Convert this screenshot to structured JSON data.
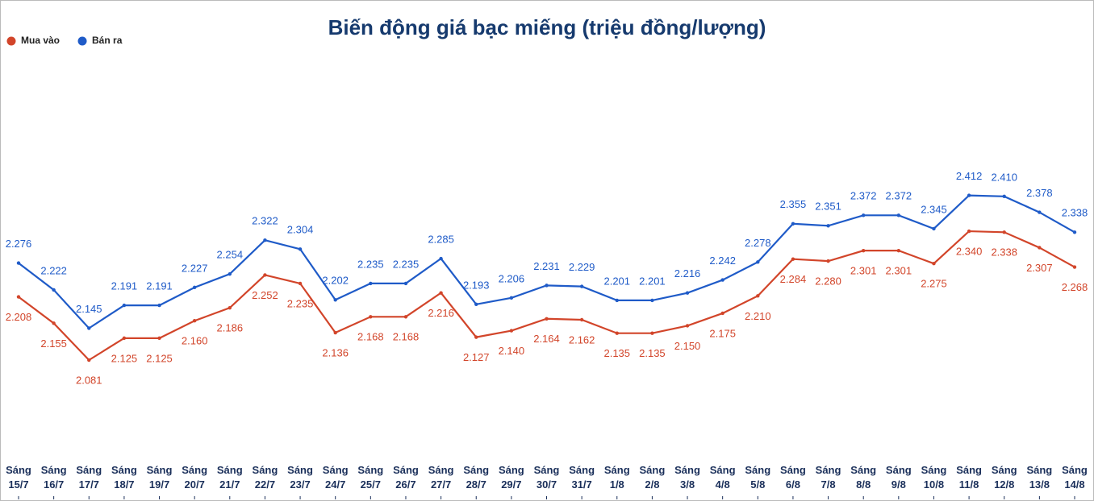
{
  "chart_data": {
    "type": "line",
    "title": "Biến động giá bạc miếng (triệu đồng/lượng)",
    "categories": [
      [
        "Sáng",
        "15/7"
      ],
      [
        "Sáng",
        "16/7"
      ],
      [
        "Sáng",
        "17/7"
      ],
      [
        "Sáng",
        "18/7"
      ],
      [
        "Sáng",
        "19/7"
      ],
      [
        "Sáng",
        "20/7"
      ],
      [
        "Sáng",
        "21/7"
      ],
      [
        "Sáng",
        "22/7"
      ],
      [
        "Sáng",
        "23/7"
      ],
      [
        "Sáng",
        "24/7"
      ],
      [
        "Sáng",
        "25/7"
      ],
      [
        "Sáng",
        "26/7"
      ],
      [
        "Sáng",
        "27/7"
      ],
      [
        "Sáng",
        "28/7"
      ],
      [
        "Sáng",
        "29/7"
      ],
      [
        "Sáng",
        "30/7"
      ],
      [
        "Sáng",
        "31/7"
      ],
      [
        "Sáng",
        "1/8"
      ],
      [
        "Sáng",
        "2/8"
      ],
      [
        "Sáng",
        "3/8"
      ],
      [
        "Sáng",
        "4/8"
      ],
      [
        "Sáng",
        "5/8"
      ],
      [
        "Sáng",
        "6/8"
      ],
      [
        "Sáng",
        "7/8"
      ],
      [
        "Sáng",
        "8/8"
      ],
      [
        "Sáng",
        "9/8"
      ],
      [
        "Sáng",
        "10/8"
      ],
      [
        "Sáng",
        "11/8"
      ],
      [
        "Sáng",
        "12/8"
      ],
      [
        "Sáng",
        "13/8"
      ],
      [
        "Sáng",
        "14/8"
      ]
    ],
    "series": [
      {
        "name": "Mua vào",
        "color": "#d2452a",
        "label_pos": "below",
        "values": [
          2.208,
          2.155,
          2.081,
          2.125,
          2.125,
          2.16,
          2.186,
          2.252,
          2.235,
          2.136,
          2.168,
          2.168,
          2.216,
          2.127,
          2.14,
          2.164,
          2.162,
          2.135,
          2.135,
          2.15,
          2.175,
          2.21,
          2.284,
          2.28,
          2.301,
          2.301,
          2.275,
          2.34,
          2.338,
          2.307,
          2.268
        ],
        "value_labels": [
          "2.208",
          "2.155",
          "2.081",
          "2.125",
          "2.125",
          "2.160",
          "2.186",
          "2.252",
          "2.235",
          "2.136",
          "2.168",
          "2.168",
          "2.216",
          "2.127",
          "2.140",
          "2.164",
          "2.162",
          "2.135",
          "2.135",
          "2.150",
          "2.175",
          "2.210",
          "2.284",
          "2.280",
          "2.301",
          "2.301",
          "2.275",
          "2.340",
          "2.338",
          "2.307",
          "2.268"
        ]
      },
      {
        "name": "Bán ra",
        "color": "#1f5bc8",
        "label_pos": "above",
        "values": [
          2.276,
          2.222,
          2.145,
          2.191,
          2.191,
          2.227,
          2.254,
          2.322,
          2.304,
          2.202,
          2.235,
          2.235,
          2.285,
          2.193,
          2.206,
          2.231,
          2.229,
          2.201,
          2.201,
          2.216,
          2.242,
          2.278,
          2.355,
          2.351,
          2.372,
          2.372,
          2.345,
          2.412,
          2.41,
          2.378,
          2.338
        ],
        "value_labels": [
          "2.276",
          "2.222",
          "2.145",
          "2.191",
          "2.191",
          "2.227",
          "2.254",
          "2.322",
          "2.304",
          "2.202",
          "2.235",
          "2.235",
          "2.285",
          "2.193",
          "2.206",
          "2.231",
          "2.229",
          "2.201",
          "2.201",
          "2.216",
          "2.242",
          "2.278",
          "2.355",
          "2.351",
          "2.372",
          "2.372",
          "2.345",
          "2.412",
          "2.410",
          "2.378",
          "2.338"
        ]
      }
    ],
    "ylim": [
      1.89,
      2.74
    ],
    "legend": "top-left"
  }
}
